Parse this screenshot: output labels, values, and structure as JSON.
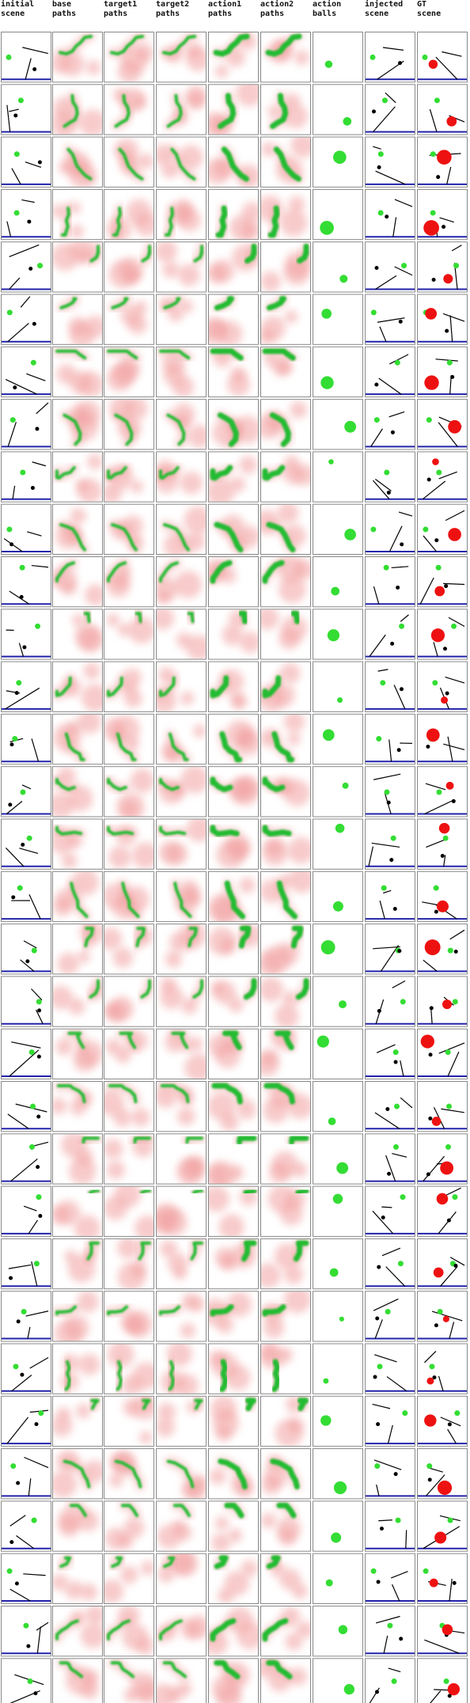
{
  "columns": [
    {
      "line1": "initial",
      "line2": "scene",
      "kind": "scene"
    },
    {
      "line1": "base",
      "line2": "paths",
      "kind": "path"
    },
    {
      "line1": "target1",
      "line2": "paths",
      "kind": "path"
    },
    {
      "line1": "target2",
      "line2": "paths",
      "kind": "path"
    },
    {
      "line1": "action1",
      "line2": "paths",
      "kind": "action"
    },
    {
      "line1": "action2",
      "line2": "paths",
      "kind": "action"
    },
    {
      "line1": "action",
      "line2": "balls",
      "kind": "balls"
    },
    {
      "line1": "injected",
      "line2": "scene",
      "kind": "scene"
    },
    {
      "line1": "GT",
      "line2": "scene",
      "kind": "gt"
    }
  ],
  "row_count": 32,
  "colors": {
    "grid_border": "#888888",
    "path_green": "#22bb33",
    "heat_red": "#f2a0a0",
    "ball_green": "#33dd33",
    "ball_red": "#ee1111",
    "scene_black": "#000000",
    "scene_blue": "#2222aa"
  }
}
